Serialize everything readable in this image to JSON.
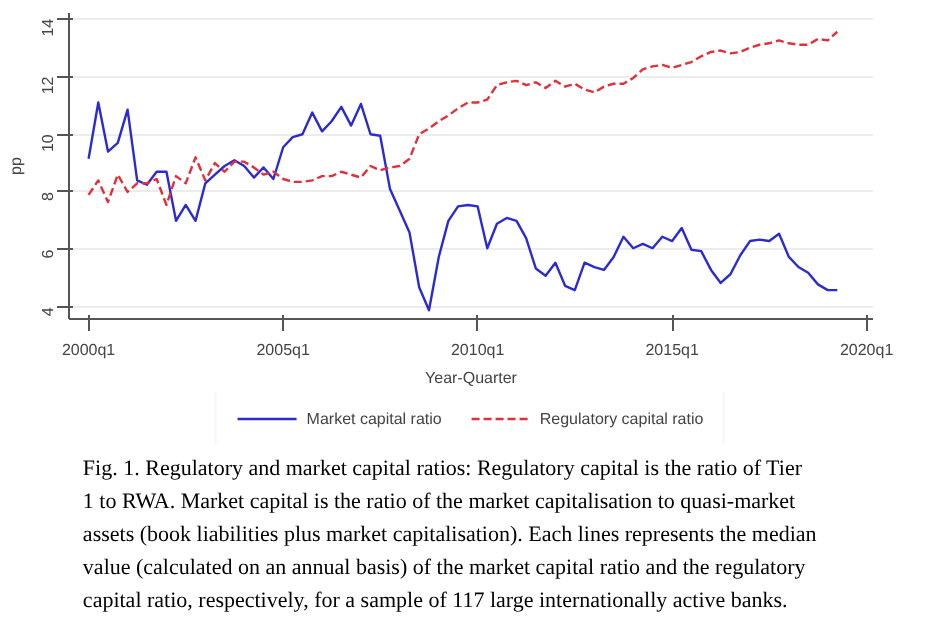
{
  "chart_data": {
    "type": "line",
    "xlabel": "Year-Quarter",
    "ylabel": "pp",
    "x": [
      "2000-01",
      "2000-04",
      "2000-07",
      "2000-10",
      "2001-01",
      "2001-04",
      "2001-07",
      "2001-10",
      "2002-01",
      "2002-04",
      "2002-07",
      "2002-10",
      "2003-01",
      "2003-04",
      "2003-07",
      "2003-10",
      "2004-01",
      "2004-04",
      "2004-07",
      "2004-10",
      "2005-01",
      "2005-04",
      "2005-07",
      "2005-10",
      "2006-01",
      "2006-04",
      "2006-07",
      "2006-10",
      "2007-01",
      "2007-04",
      "2007-07",
      "2007-10",
      "2008-01",
      "2008-04",
      "2008-07",
      "2008-10",
      "2009-01",
      "2009-04",
      "2009-07",
      "2009-10",
      "2010-01",
      "2010-04",
      "2010-07",
      "2010-10",
      "2011-01",
      "2011-04",
      "2011-07",
      "2011-10",
      "2012-01",
      "2012-04",
      "2012-07",
      "2012-10",
      "2013-01",
      "2013-04",
      "2013-07",
      "2013-10",
      "2014-01",
      "2014-04",
      "2014-07",
      "2014-10",
      "2015-01",
      "2015-04",
      "2015-07",
      "2015-10",
      "2016-01",
      "2016-04",
      "2016-07",
      "2016-10",
      "2017-01",
      "2017-04",
      "2017-07",
      "2017-10",
      "2018-01",
      "2018-04",
      "2018-07",
      "2018-10",
      "2019-01",
      "2019-04"
    ],
    "series": [
      {
        "name": "Market capital ratio",
        "color": "#2b2bd0",
        "line_style": "solid",
        "values": [
          9.15,
          11.1,
          9.4,
          9.7,
          10.85,
          8.4,
          8.25,
          8.7,
          8.7,
          7.0,
          7.55,
          7.0,
          8.3,
          8.6,
          8.9,
          9.1,
          8.9,
          8.5,
          8.85,
          8.45,
          9.55,
          9.9,
          10.0,
          10.75,
          10.1,
          10.45,
          10.95,
          10.3,
          11.05,
          10.0,
          9.95,
          8.1,
          7.35,
          6.6,
          4.7,
          3.9,
          5.75,
          7.0,
          7.5,
          7.55,
          7.5,
          6.05,
          6.9,
          7.1,
          7.0,
          6.4,
          5.35,
          5.1,
          5.55,
          4.75,
          4.6,
          5.55,
          5.4,
          5.3,
          5.75,
          6.45,
          6.05,
          6.2,
          6.05,
          6.45,
          6.3,
          6.75,
          6.0,
          5.95,
          5.3,
          4.85,
          5.15,
          5.8,
          6.3,
          6.35,
          6.3,
          6.55,
          5.75,
          5.4,
          5.2,
          4.8,
          4.6,
          4.6
        ]
      },
      {
        "name": "Regulatory capital ratio",
        "color": "#e0303a",
        "line_style": "dashed",
        "values": [
          7.9,
          8.4,
          7.65,
          8.6,
          8.0,
          8.3,
          8.3,
          8.45,
          7.55,
          8.55,
          8.3,
          9.2,
          8.4,
          9.0,
          8.7,
          9.05,
          9.05,
          8.85,
          8.6,
          8.7,
          8.45,
          8.35,
          8.35,
          8.4,
          8.55,
          8.55,
          8.7,
          8.6,
          8.5,
          8.9,
          8.75,
          8.85,
          8.9,
          9.15,
          10.0,
          10.2,
          10.45,
          10.65,
          10.9,
          11.1,
          11.1,
          11.2,
          11.7,
          11.8,
          11.85,
          11.7,
          11.8,
          11.6,
          11.85,
          11.65,
          11.75,
          11.55,
          11.45,
          11.65,
          11.75,
          11.75,
          11.95,
          12.25,
          12.35,
          12.4,
          12.3,
          12.4,
          12.5,
          12.7,
          12.85,
          12.9,
          12.8,
          12.85,
          13.0,
          13.1,
          13.15,
          13.25,
          13.15,
          13.1,
          13.1,
          13.3,
          13.25,
          13.55
        ]
      }
    ],
    "xlim": [
      "1999-07",
      "2020-03"
    ],
    "xticks": [
      {
        "value": "2000-01",
        "label": "2000q1"
      },
      {
        "value": "2005-01",
        "label": "2005q1"
      },
      {
        "value": "2010-01",
        "label": "2010q1"
      },
      {
        "value": "2015-01",
        "label": "2015q1"
      },
      {
        "value": "2020-01",
        "label": "2020q1"
      }
    ],
    "ylim": [
      3.6,
      14.2
    ],
    "yticks": [
      4,
      6,
      8,
      10,
      12,
      14
    ],
    "grid": "y",
    "legend": "bottom",
    "marker": "none",
    "annotations": [
      "Fig. 1. Regulatory and market capital ratios: Regulatory capital is the ratio of Tier 1 to RWA. Market capital is the ratio of the market capitalisation to quasi-market assets (book liabilities plus market capitalisation). Each lines represents the median value (calculated on an annual basis) of the market capital ratio and the regulatory capital ratio, respectively, for a sample of 117 large internationally active banks."
    ]
  }
}
